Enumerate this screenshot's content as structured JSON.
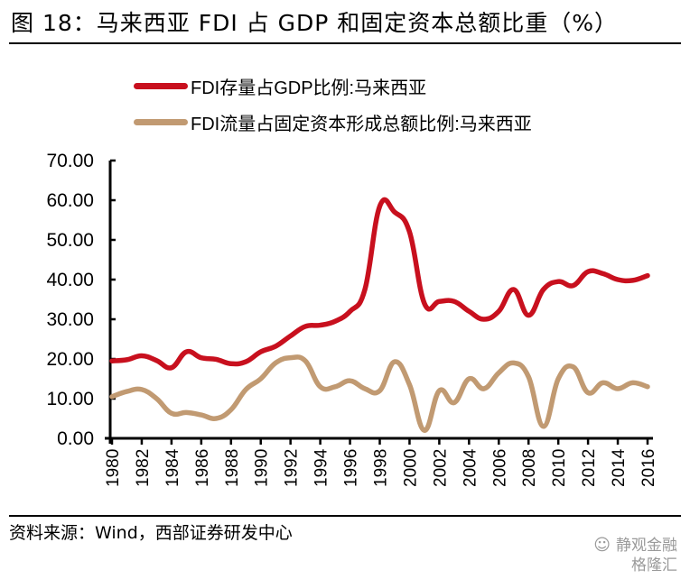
{
  "header": {
    "title": "图 18：马来西亚 FDI 占 GDP 和固定资本总额比重（%）"
  },
  "footer": {
    "source": "资料来源：Wind，西部证券研发中心",
    "watermark_line1": "静观金融",
    "watermark_line2": "格隆汇",
    "watermark_icon": "wechat-icon"
  },
  "colors": {
    "series_stock": "#C8101E",
    "series_flow": "#C19A72",
    "axis": "#000000"
  },
  "chart_data": {
    "type": "line",
    "title": "马来西亚 FDI 占 GDP 和固定资本总额比重（%）",
    "xlabel": "",
    "ylabel": "",
    "ylim": [
      0,
      70
    ],
    "yticks": [
      "0.00",
      "10.00",
      "20.00",
      "30.00",
      "40.00",
      "50.00",
      "60.00",
      "70.00"
    ],
    "ytick_values": [
      0,
      10,
      20,
      30,
      40,
      50,
      60,
      70
    ],
    "x": [
      1980,
      1981,
      1982,
      1983,
      1984,
      1985,
      1986,
      1987,
      1988,
      1989,
      1990,
      1991,
      1992,
      1993,
      1994,
      1995,
      1996,
      1997,
      1998,
      1999,
      2000,
      2001,
      2002,
      2003,
      2004,
      2005,
      2006,
      2007,
      2008,
      2009,
      2010,
      2011,
      2012,
      2013,
      2014,
      2015,
      2016
    ],
    "xticks": [
      "1980",
      "1982",
      "1984",
      "1986",
      "1988",
      "1990",
      "1992",
      "1994",
      "1996",
      "1998",
      "2000",
      "2002",
      "2004",
      "2006",
      "2008",
      "2010",
      "2012",
      "2014",
      "2016"
    ],
    "xlim": [
      1980,
      2016
    ],
    "grid": false,
    "legend_position": "top",
    "series": [
      {
        "name": "FDI存量占GDP比例:马来西亚",
        "color": "#C8101E",
        "values": [
          19.5,
          19.8,
          20.8,
          19.6,
          17.8,
          21.8,
          20.3,
          19.9,
          18.8,
          19.3,
          21.8,
          23.2,
          25.8,
          28.2,
          28.5,
          29.5,
          32.0,
          37.5,
          58.5,
          57.0,
          52.0,
          34.0,
          34.5,
          34.5,
          32.0,
          30.0,
          32.0,
          37.5,
          31.0,
          37.5,
          39.5,
          38.5,
          42.0,
          41.5,
          40.0,
          39.8,
          41.0
        ]
      },
      {
        "name": "FDI流量占固定资本形成总额比例:马来西亚",
        "color": "#C19A72",
        "values": [
          10.5,
          11.8,
          12.3,
          10.0,
          6.3,
          6.5,
          5.9,
          5.0,
          7.2,
          12.3,
          15.0,
          19.0,
          20.3,
          19.5,
          13.0,
          13.0,
          14.5,
          12.5,
          12.0,
          19.3,
          13.5,
          2.0,
          12.0,
          9.0,
          15.0,
          12.5,
          16.5,
          19.0,
          15.5,
          3.0,
          15.0,
          18.0,
          11.5,
          14.0,
          12.5,
          14.0,
          13.0
        ]
      }
    ]
  }
}
